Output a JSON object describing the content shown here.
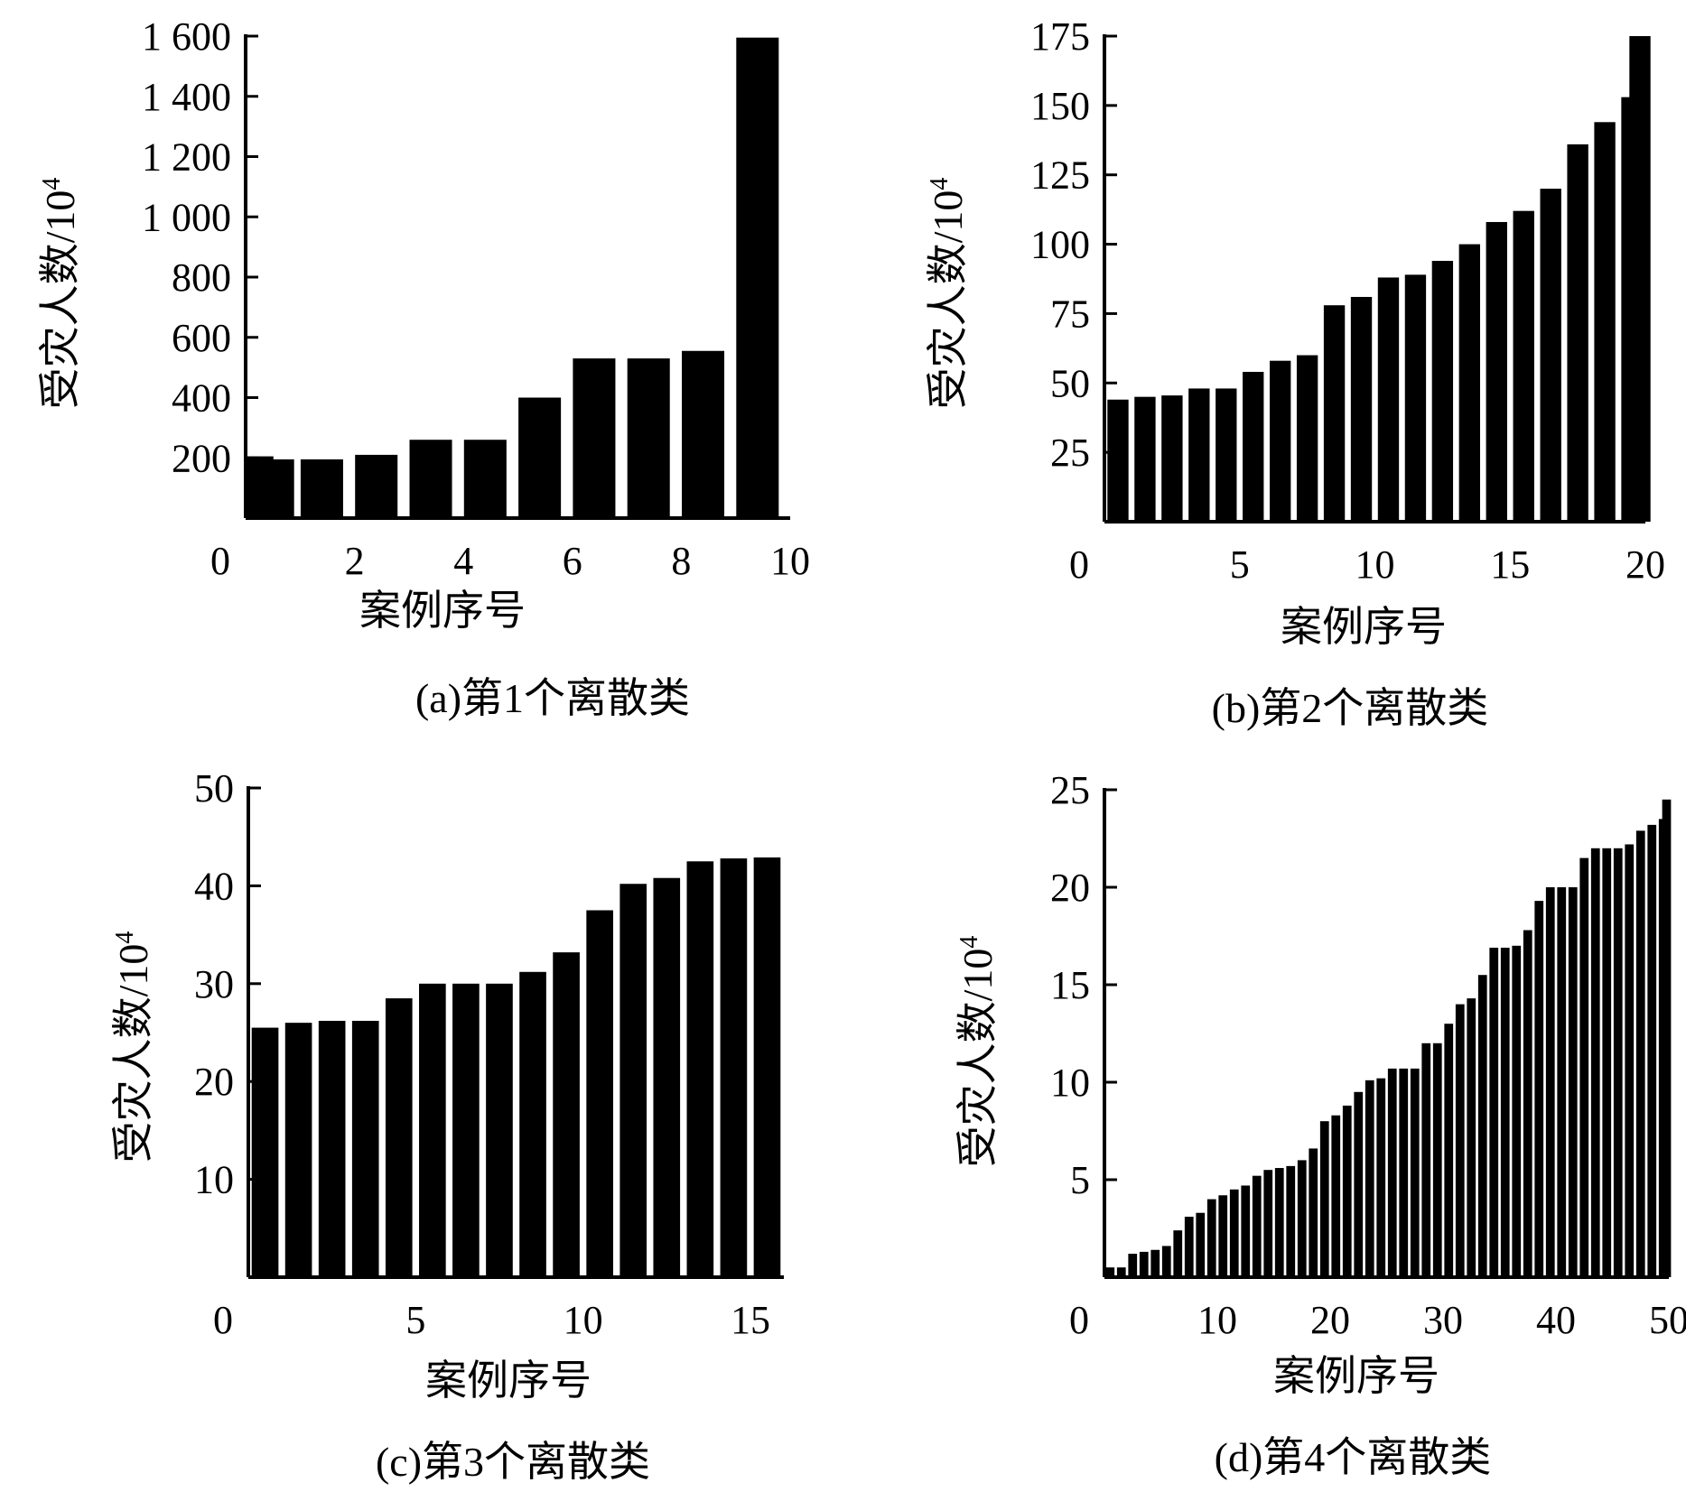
{
  "chart_data": [
    {
      "type": "bar",
      "caption": "(a)第1个离散类",
      "xlabel": "案例序号",
      "ylabel": "受灾人数/10",
      "ylabel_sup": "4",
      "xlim": [
        0,
        10
      ],
      "ylim": [
        0,
        1600
      ],
      "xticks": [
        0,
        2,
        4,
        6,
        8,
        10
      ],
      "xtick_labels": [
        "0",
        "2",
        "4",
        "6",
        "8",
        "10"
      ],
      "yticks": [
        200,
        400,
        600,
        800,
        1000,
        1200,
        1400,
        1600
      ],
      "ytick_labels": [
        "200",
        "400",
        "600",
        "800",
        "1 000",
        "1 200",
        "1 400",
        "1 600"
      ],
      "x": [
        0.5,
        1.4,
        2.4,
        3.4,
        4.4,
        5.4,
        6.4,
        7.4,
        8.4,
        9.4
      ],
      "values": [
        195,
        195,
        210,
        260,
        260,
        400,
        530,
        530,
        555,
        1595
      ],
      "extra_bars": [
        {
          "x": 0.12,
          "value": 205
        }
      ],
      "bar_width": 0.78,
      "grid": false
    },
    {
      "type": "bar",
      "caption": "(b)第2个离散类",
      "xlabel": "案例序号",
      "ylabel": "受灾人数/10",
      "ylabel_sup": "4",
      "xlim": [
        0,
        20
      ],
      "ylim": [
        0,
        175
      ],
      "xticks": [
        0,
        5,
        10,
        15,
        20
      ],
      "xtick_labels": [
        "0",
        "5",
        "10",
        "15",
        "20"
      ],
      "yticks": [
        25,
        50,
        75,
        100,
        125,
        150,
        175
      ],
      "ytick_labels": [
        "25",
        "50",
        "75",
        "100",
        "125",
        "150",
        "175"
      ],
      "x": [
        0.5,
        1.5,
        2.5,
        3.5,
        4.5,
        5.5,
        6.5,
        7.5,
        8.5,
        9.5,
        10.5,
        11.5,
        12.5,
        13.5,
        14.5,
        15.5,
        16.5,
        17.5,
        18.5,
        19.5
      ],
      "values": [
        44,
        45,
        45.5,
        48,
        48,
        54,
        58,
        60,
        78,
        81,
        88,
        89,
        94,
        100,
        108,
        112,
        120,
        136,
        144,
        153
      ],
      "extra_bars": [
        {
          "x": 19.8,
          "value": 175
        }
      ],
      "bar_width": 0.78,
      "grid": false
    },
    {
      "type": "bar",
      "caption": "(c)第3个离散类",
      "xlabel": "案例序号",
      "ylabel": "受灾人数/10",
      "ylabel_sup": "4",
      "xlim": [
        0,
        16
      ],
      "ylim": [
        0,
        50
      ],
      "xticks": [
        0,
        5,
        10,
        15
      ],
      "xtick_labels": [
        "0",
        "5",
        "10",
        "15"
      ],
      "yticks": [
        10,
        20,
        30,
        40,
        50
      ],
      "ytick_labels": [
        "10",
        "20",
        "30",
        "40",
        "50"
      ],
      "x": [
        0.5,
        1.5,
        2.5,
        3.5,
        4.5,
        5.5,
        6.5,
        7.5,
        8.5,
        9.5,
        10.5,
        11.5,
        12.5,
        13.5,
        14.5,
        15.5
      ],
      "values": [
        25.5,
        26,
        26.2,
        26.2,
        28.5,
        30,
        30,
        30,
        31.2,
        33.2,
        37.5,
        40.2,
        40.8,
        42.5,
        42.8,
        42.9
      ],
      "bar_width": 0.8,
      "grid": false
    },
    {
      "type": "bar",
      "caption": "(d)第4个离散类",
      "xlabel": "案例序号",
      "ylabel": "受灾人数/10",
      "ylabel_sup": "4",
      "xlim": [
        0,
        50
      ],
      "ylim": [
        0,
        25
      ],
      "xticks": [
        0,
        10,
        20,
        30,
        40,
        50
      ],
      "xtick_labels": [
        "0",
        "10",
        "20",
        "30",
        "40",
        "50"
      ],
      "yticks": [
        5,
        10,
        15,
        20,
        25
      ],
      "ytick_labels": [
        "5",
        "10",
        "15",
        "20",
        "25"
      ],
      "x": [
        0.5,
        1.5,
        2.5,
        3.5,
        4.5,
        5.5,
        6.5,
        7.5,
        8.5,
        9.5,
        10.5,
        11.5,
        12.5,
        13.5,
        14.5,
        15.5,
        16.5,
        17.5,
        18.5,
        19.5,
        20.5,
        21.5,
        22.5,
        23.5,
        24.5,
        25.5,
        26.5,
        27.5,
        28.5,
        29.5,
        30.5,
        31.5,
        32.5,
        33.5,
        34.5,
        35.5,
        36.5,
        37.5,
        38.5,
        39.5,
        40.5,
        41.5,
        42.5,
        43.5,
        44.5,
        45.5,
        46.5,
        47.5,
        48.5,
        49.5
      ],
      "values": [
        0.5,
        0.5,
        1.2,
        1.3,
        1.4,
        1.6,
        2.4,
        3.1,
        3.3,
        4,
        4.2,
        4.5,
        4.7,
        5.2,
        5.5,
        5.6,
        5.7,
        6,
        6.6,
        8,
        8.3,
        8.8,
        9.5,
        10.1,
        10.2,
        10.7,
        10.7,
        10.7,
        12,
        12,
        13,
        14,
        14.3,
        15.5,
        16.9,
        16.9,
        17,
        17.8,
        19.3,
        20,
        20,
        20,
        21.5,
        22,
        22,
        22,
        22.2,
        22.9,
        23.2,
        23.5
      ],
      "extra_bars": [
        {
          "x": 49.8,
          "value": 24.5
        }
      ],
      "bar_width": 0.78,
      "grid": false
    }
  ]
}
